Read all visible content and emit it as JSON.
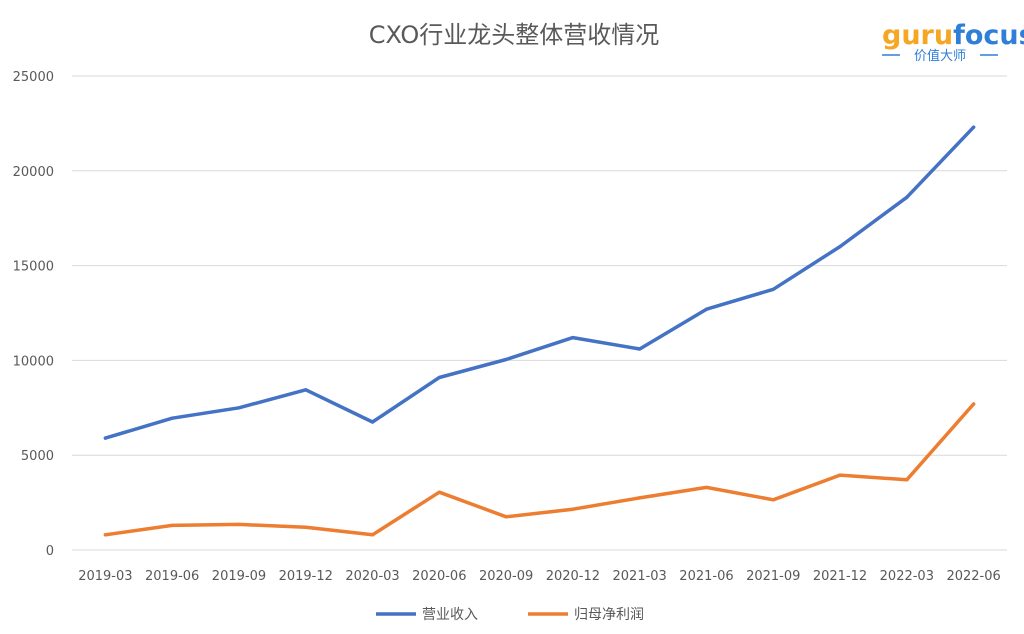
{
  "chart_data": {
    "type": "line",
    "title": "CXO行业龙头整体营收情况",
    "categories": [
      "2019-03",
      "2019-06",
      "2019-09",
      "2019-12",
      "2020-03",
      "2020-06",
      "2020-09",
      "2020-12",
      "2021-03",
      "2021-06",
      "2021-09",
      "2021-12",
      "2022-03",
      "2022-06"
    ],
    "yticks": [
      "0",
      "5000",
      "10000",
      "15000",
      "20000",
      "25000"
    ],
    "ylim": [
      0,
      25000
    ],
    "grid": true,
    "legend_position": "bottom",
    "series": [
      {
        "name": "营业收入",
        "color": "#4472c4",
        "values": [
          5900,
          6950,
          7500,
          8450,
          6750,
          9100,
          10050,
          11200,
          10600,
          12700,
          13750,
          16000,
          18600,
          22300
        ]
      },
      {
        "name": "归母净利润",
        "color": "#ed7d31",
        "values": [
          800,
          1300,
          1350,
          1200,
          800,
          3050,
          1750,
          2150,
          2750,
          3300,
          2650,
          3950,
          3700,
          7700
        ]
      }
    ]
  },
  "logo": {
    "guru": "guru",
    "focus": "focus",
    "subtitle": "价值大师"
  }
}
